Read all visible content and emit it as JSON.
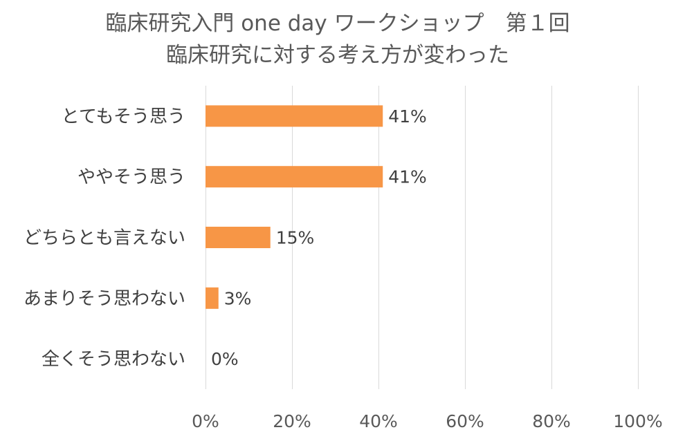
{
  "chart_data": {
    "type": "bar",
    "orientation": "horizontal",
    "title_lines": [
      "臨床研究入門 one day ワークショップ　第１回",
      "臨床研究に対する考え方が変わった"
    ],
    "categories": [
      "とてもそう思う",
      "ややそう思う",
      "どちらとも言えない",
      "あまりそう思わない",
      "全くそう思わない"
    ],
    "values": [
      41,
      41,
      15,
      3,
      0
    ],
    "data_labels": [
      "41%",
      "41%",
      "15%",
      "3%",
      "0%"
    ],
    "xlim": [
      0,
      100
    ],
    "xticks": [
      0,
      20,
      40,
      60,
      80,
      100
    ],
    "xtick_labels": [
      "0%",
      "20%",
      "40%",
      "60%",
      "80%",
      "100%"
    ],
    "grid": true,
    "legend": "none",
    "bar_color": "#F79646"
  }
}
